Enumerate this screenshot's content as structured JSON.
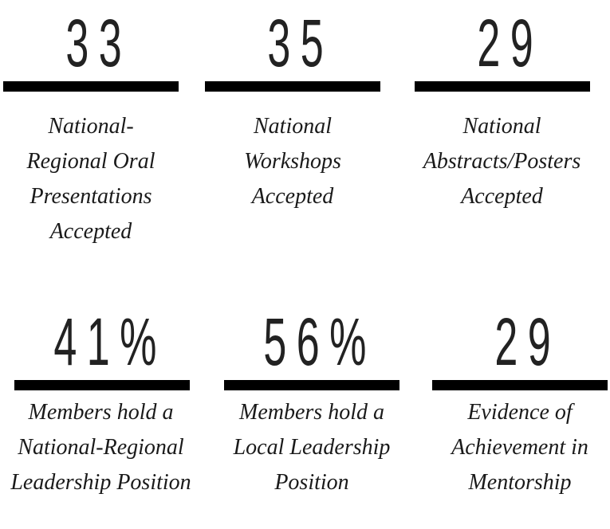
{
  "stats": [
    {
      "value": "33",
      "label": "National-Regional Oral Presentations Accepted"
    },
    {
      "value": "35",
      "label": "National Workshops Accepted"
    },
    {
      "value": "29",
      "label": "National Abstracts/Posters Accepted"
    },
    {
      "value": "41%",
      "label": "Members hold a National-Regional Leadership Position"
    },
    {
      "value": "56%",
      "label": "Members hold a Local Leadership Position"
    },
    {
      "value": "29",
      "label": "Evidence of Achievement in Mentorship"
    }
  ]
}
